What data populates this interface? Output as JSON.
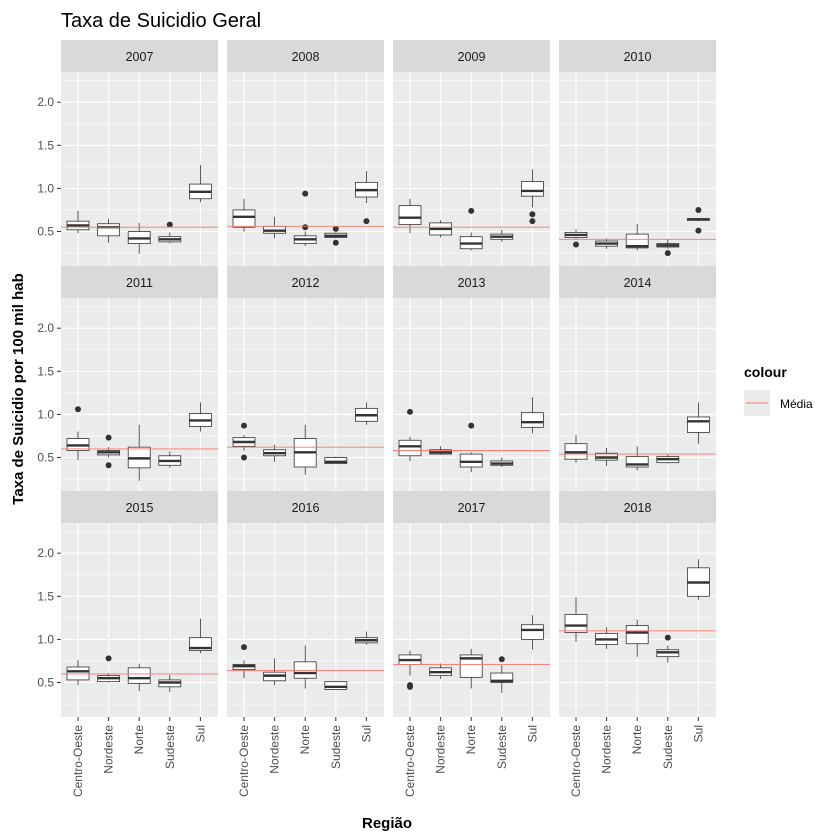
{
  "chart_data": {
    "type": "boxplot",
    "title": "Taxa de Suicidio Geral",
    "xlabel": "Região",
    "ylabel": "Taxa de Suicidio por 100 mil hab",
    "ylim": [
      0.1,
      2.35
    ],
    "yticks": [
      "0.5",
      "1.0",
      "1.5",
      "2.0"
    ],
    "categories": [
      "Centro-Oeste",
      "Nordeste",
      "Norte",
      "Sudeste",
      "Sul"
    ],
    "facet_layout": "3x4 grid",
    "grid": true,
    "colors": {
      "panel_bg": "#ebebeb",
      "strip_bg": "#d9d9d9",
      "grid": "#ffffff",
      "box": "#333333",
      "mean_line": "#f8766d"
    },
    "legend": {
      "title": "colour",
      "position": "right",
      "items": [
        {
          "label": "Média",
          "color": "#f8766d"
        }
      ]
    },
    "box_fields": [
      "ymin",
      "q1",
      "median",
      "q3",
      "ymax"
    ],
    "panels": [
      {
        "year": "2007",
        "mean": 0.55,
        "boxes": [
          {
            "stats": [
              0.48,
              0.52,
              0.57,
              0.62,
              0.74
            ],
            "outliers": []
          },
          {
            "stats": [
              0.37,
              0.45,
              0.55,
              0.59,
              0.65
            ],
            "outliers": []
          },
          {
            "stats": [
              0.24,
              0.36,
              0.42,
              0.5,
              0.6
            ],
            "outliers": []
          },
          {
            "stats": [
              0.36,
              0.38,
              0.41,
              0.44,
              0.49
            ],
            "outliers": [
              0.58
            ]
          },
          {
            "stats": [
              0.84,
              0.88,
              0.96,
              1.05,
              1.27
            ],
            "outliers": []
          }
        ]
      },
      {
        "year": "2008",
        "mean": 0.56,
        "boxes": [
          {
            "stats": [
              0.5,
              0.55,
              0.67,
              0.75,
              0.88
            ],
            "outliers": []
          },
          {
            "stats": [
              0.42,
              0.48,
              0.51,
              0.56,
              0.67
            ],
            "outliers": []
          },
          {
            "stats": [
              0.33,
              0.36,
              0.41,
              0.45,
              0.5
            ],
            "outliers": [
              0.94,
              0.55
            ]
          },
          {
            "stats": [
              0.42,
              0.43,
              0.45,
              0.48,
              0.49
            ],
            "outliers": [
              0.53,
              0.37
            ]
          },
          {
            "stats": [
              0.83,
              0.9,
              0.98,
              1.07,
              1.2
            ],
            "outliers": [
              0.62
            ]
          }
        ]
      },
      {
        "year": "2009",
        "mean": 0.55,
        "boxes": [
          {
            "stats": [
              0.48,
              0.58,
              0.66,
              0.8,
              0.88
            ],
            "outliers": []
          },
          {
            "stats": [
              0.43,
              0.46,
              0.53,
              0.6,
              0.63
            ],
            "outliers": []
          },
          {
            "stats": [
              0.28,
              0.3,
              0.36,
              0.44,
              0.49
            ],
            "outliers": [
              0.74
            ]
          },
          {
            "stats": [
              0.38,
              0.41,
              0.44,
              0.47,
              0.52
            ],
            "outliers": []
          },
          {
            "stats": [
              0.78,
              0.91,
              0.97,
              1.08,
              1.22
            ],
            "outliers": [
              0.7,
              0.62
            ]
          }
        ]
      },
      {
        "year": "2010",
        "mean": 0.41,
        "boxes": [
          {
            "stats": [
              0.41,
              0.43,
              0.46,
              0.49,
              0.52
            ],
            "outliers": [
              0.35
            ]
          },
          {
            "stats": [
              0.3,
              0.33,
              0.36,
              0.39,
              0.42
            ],
            "outliers": []
          },
          {
            "stats": [
              0.28,
              0.31,
              0.33,
              0.47,
              0.59
            ],
            "outliers": []
          },
          {
            "stats": [
              0.3,
              0.32,
              0.34,
              0.36,
              0.41
            ],
            "outliers": [
              0.25
            ]
          },
          {
            "stats": [
              0.62,
              0.63,
              0.64,
              0.65,
              0.66
            ],
            "outliers": [
              0.75,
              0.51
            ]
          }
        ]
      },
      {
        "year": "2011",
        "mean": 0.6,
        "boxes": [
          {
            "stats": [
              0.47,
              0.58,
              0.64,
              0.72,
              0.8
            ],
            "outliers": [
              1.06
            ]
          },
          {
            "stats": [
              0.5,
              0.53,
              0.56,
              0.58,
              0.62
            ],
            "outliers": [
              0.73,
              0.41
            ]
          },
          {
            "stats": [
              0.23,
              0.38,
              0.49,
              0.62,
              0.88
            ],
            "outliers": []
          },
          {
            "stats": [
              0.38,
              0.41,
              0.46,
              0.52,
              0.57
            ],
            "outliers": []
          },
          {
            "stats": [
              0.8,
              0.86,
              0.93,
              1.01,
              1.14
            ],
            "outliers": []
          }
        ]
      },
      {
        "year": "2012",
        "mean": 0.62,
        "boxes": [
          {
            "stats": [
              0.58,
              0.63,
              0.68,
              0.73,
              0.76
            ],
            "outliers": [
              0.87,
              0.5
            ]
          },
          {
            "stats": [
              0.45,
              0.52,
              0.55,
              0.59,
              0.65
            ],
            "outliers": []
          },
          {
            "stats": [
              0.3,
              0.39,
              0.56,
              0.72,
              0.88
            ],
            "outliers": []
          },
          {
            "stats": [
              0.43,
              0.43,
              0.45,
              0.5,
              0.51
            ],
            "outliers": []
          },
          {
            "stats": [
              0.88,
              0.92,
              0.99,
              1.07,
              1.14
            ],
            "outliers": []
          }
        ]
      },
      {
        "year": "2013",
        "mean": 0.58,
        "boxes": [
          {
            "stats": [
              0.46,
              0.52,
              0.63,
              0.7,
              0.74
            ],
            "outliers": [
              1.03
            ]
          },
          {
            "stats": [
              0.53,
              0.54,
              0.56,
              0.59,
              0.63
            ],
            "outliers": []
          },
          {
            "stats": [
              0.33,
              0.39,
              0.45,
              0.54,
              0.56
            ],
            "outliers": [
              0.87
            ]
          },
          {
            "stats": [
              0.39,
              0.41,
              0.43,
              0.46,
              0.5
            ],
            "outliers": []
          },
          {
            "stats": [
              0.78,
              0.85,
              0.91,
              1.02,
              1.2
            ],
            "outliers": []
          }
        ]
      },
      {
        "year": "2014",
        "mean": 0.54,
        "boxes": [
          {
            "stats": [
              0.44,
              0.48,
              0.56,
              0.66,
              0.76
            ],
            "outliers": []
          },
          {
            "stats": [
              0.4,
              0.47,
              0.5,
              0.55,
              0.61
            ],
            "outliers": []
          },
          {
            "stats": [
              0.35,
              0.39,
              0.42,
              0.51,
              0.63
            ],
            "outliers": []
          },
          {
            "stats": [
              0.43,
              0.44,
              0.48,
              0.51,
              0.54
            ],
            "outliers": []
          },
          {
            "stats": [
              0.66,
              0.79,
              0.92,
              0.97,
              1.14
            ],
            "outliers": []
          }
        ]
      },
      {
        "year": "2015",
        "mean": 0.6,
        "boxes": [
          {
            "stats": [
              0.47,
              0.53,
              0.63,
              0.68,
              0.76
            ],
            "outliers": []
          },
          {
            "stats": [
              0.5,
              0.51,
              0.55,
              0.58,
              0.61
            ],
            "outliers": [
              0.78
            ]
          },
          {
            "stats": [
              0.4,
              0.49,
              0.55,
              0.67,
              0.72
            ],
            "outliers": []
          },
          {
            "stats": [
              0.39,
              0.45,
              0.5,
              0.53,
              0.59
            ],
            "outliers": []
          },
          {
            "stats": [
              0.84,
              0.87,
              0.9,
              1.02,
              1.24
            ],
            "outliers": []
          }
        ]
      },
      {
        "year": "2016",
        "mean": 0.64,
        "boxes": [
          {
            "stats": [
              0.55,
              0.65,
              0.69,
              0.71,
              0.76
            ],
            "outliers": [
              0.91
            ]
          },
          {
            "stats": [
              0.47,
              0.52,
              0.58,
              0.62,
              0.78
            ],
            "outliers": []
          },
          {
            "stats": [
              0.43,
              0.55,
              0.61,
              0.74,
              0.93
            ],
            "outliers": []
          },
          {
            "stats": [
              0.42,
              0.42,
              0.45,
              0.51,
              0.51
            ],
            "outliers": []
          },
          {
            "stats": [
              0.94,
              0.96,
              0.99,
              1.02,
              1.09
            ],
            "outliers": []
          }
        ]
      },
      {
        "year": "2017",
        "mean": 0.71,
        "boxes": [
          {
            "stats": [
              0.58,
              0.71,
              0.76,
              0.82,
              0.87
            ],
            "outliers": [
              0.47,
              0.45
            ]
          },
          {
            "stats": [
              0.54,
              0.58,
              0.62,
              0.67,
              0.72
            ],
            "outliers": []
          },
          {
            "stats": [
              0.43,
              0.56,
              0.78,
              0.82,
              0.89
            ],
            "outliers": []
          },
          {
            "stats": [
              0.38,
              0.5,
              0.52,
              0.61,
              0.7
            ],
            "outliers": [
              0.77
            ]
          },
          {
            "stats": [
              0.88,
              1.0,
              1.11,
              1.17,
              1.28
            ],
            "outliers": []
          }
        ]
      },
      {
        "year": "2018",
        "mean": 1.1,
        "boxes": [
          {
            "stats": [
              0.97,
              1.08,
              1.16,
              1.29,
              1.49
            ],
            "outliers": []
          },
          {
            "stats": [
              0.89,
              0.94,
              1.0,
              1.07,
              1.14
            ],
            "outliers": []
          },
          {
            "stats": [
              0.8,
              0.95,
              1.08,
              1.16,
              1.23
            ],
            "outliers": []
          },
          {
            "stats": [
              0.73,
              0.8,
              0.85,
              0.88,
              0.93
            ],
            "outliers": [
              1.02
            ]
          },
          {
            "stats": [
              1.46,
              1.5,
              1.66,
              1.83,
              1.93
            ],
            "outliers": []
          }
        ]
      }
    ]
  }
}
